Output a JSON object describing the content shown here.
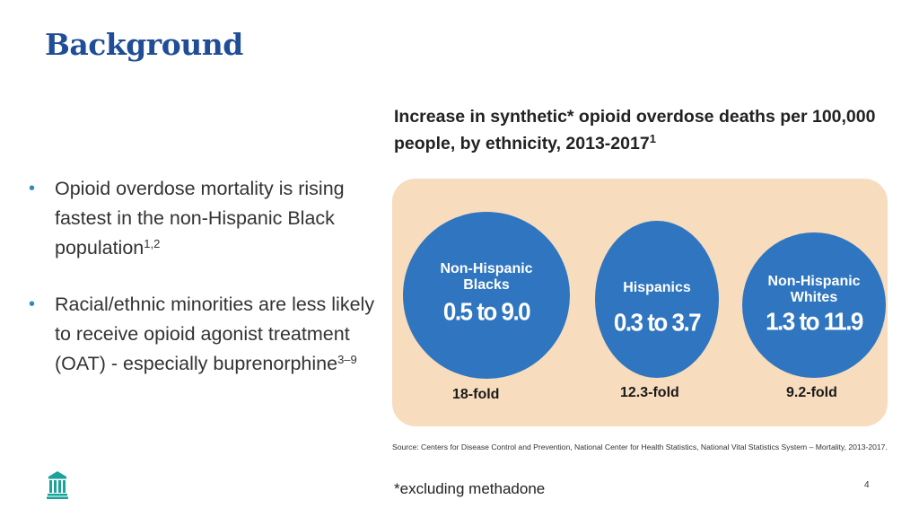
{
  "slide": {
    "title": "Background",
    "page_number": "4",
    "footnote": "*excluding methadone"
  },
  "bullets": [
    {
      "text": "Opioid overdose mortality is rising fastest in the non-Hispanic Black population",
      "sup": "1,2"
    },
    {
      "text": "Racial/ethnic minorities are less likely to receive opioid agonist treatment (OAT) - especially buprenorphine",
      "sup": "3–9"
    }
  ],
  "figure": {
    "title": "Increase in synthetic* opioid overdose deaths per 100,000 people, by ethnicity, 2013-2017",
    "title_sup": "1",
    "source": "Source: Centers for Disease Control and Prevention, National Center for Health Statistics, National Vital Statistics System – Mortality, 2013-2017.",
    "colors": {
      "panel": "#f7dcbe",
      "circle": "#2f75bf",
      "title_accent": "#1f4e96"
    },
    "groups": [
      {
        "label_line1": "Non-Hispanic",
        "label_line2": "Blacks",
        "range": "0.5 to 9.0",
        "fold": "18-fold"
      },
      {
        "label_line1": "Hispanics",
        "label_line2": "",
        "range": "0.3 to 3.7",
        "fold": "12.3-fold"
      },
      {
        "label_line1": "Non-Hispanic",
        "label_line2": "Whites",
        "range": "1.3 to 11.9",
        "fold": "9.2-fold"
      }
    ]
  },
  "logo_icon": "institution-building-icon"
}
